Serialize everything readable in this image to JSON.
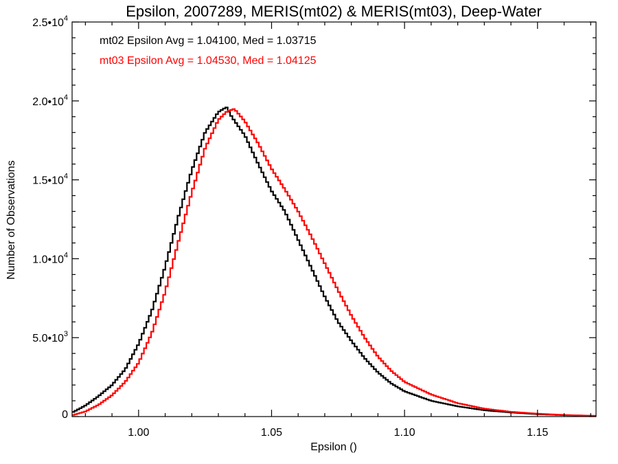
{
  "chart_data": {
    "type": "line",
    "title": "Epsilon, 2007289, MERIS(mt02) & MERIS(mt03), Deep-Water",
    "xlabel": "Epsilon ()",
    "ylabel": "Number of Observations",
    "xlim": [
      0.975,
      1.172
    ],
    "ylim": [
      0,
      25000
    ],
    "step": true,
    "x_ticks": [
      {
        "value": 1.0,
        "label": "1.00"
      },
      {
        "value": 1.05,
        "label": "1.05"
      },
      {
        "value": 1.1,
        "label": "1.10"
      },
      {
        "value": 1.15,
        "label": "1.15"
      }
    ],
    "y_ticks": [
      {
        "value": 0,
        "mantissa": "0",
        "exp": ""
      },
      {
        "value": 5000,
        "mantissa": "5.0•10",
        "exp": "3"
      },
      {
        "value": 10000,
        "mantissa": "1.0•10",
        "exp": "4"
      },
      {
        "value": 15000,
        "mantissa": "1.5•10",
        "exp": "4"
      },
      {
        "value": 20000,
        "mantissa": "2.0•10",
        "exp": "4"
      },
      {
        "value": 25000,
        "mantissa": "2.5•10",
        "exp": "4"
      }
    ],
    "annotations": [
      {
        "text": "mt02 Epsilon Avg = 1.04100, Med = 1.03715",
        "color": "#000000"
      },
      {
        "text": "mt03 Epsilon Avg = 1.04530, Med = 1.04125",
        "color": "#ff0000"
      }
    ],
    "series": [
      {
        "color": "#000000",
        "x": [
          0.975,
          0.98,
          0.985,
          0.99,
          0.995,
          1.0,
          1.005,
          1.01,
          1.015,
          1.02,
          1.025,
          1.03,
          1.033,
          1.035,
          1.04,
          1.045,
          1.05,
          1.055,
          1.06,
          1.065,
          1.07,
          1.075,
          1.08,
          1.085,
          1.09,
          1.095,
          1.1,
          1.11,
          1.12,
          1.13,
          1.14,
          1.15,
          1.16,
          1.172
        ],
        "y": [
          250,
          700,
          1300,
          2000,
          3000,
          4600,
          6700,
          9500,
          12700,
          15600,
          18000,
          19300,
          19600,
          19000,
          17800,
          16000,
          14300,
          13000,
          11200,
          9400,
          7600,
          6000,
          4800,
          3700,
          2800,
          2100,
          1600,
          1000,
          650,
          400,
          260,
          150,
          90,
          40
        ]
      },
      {
        "color": "#ff0000",
        "x": [
          0.975,
          0.98,
          0.985,
          0.99,
          0.995,
          1.0,
          1.005,
          1.01,
          1.015,
          1.02,
          1.025,
          1.03,
          1.033,
          1.036,
          1.04,
          1.045,
          1.05,
          1.055,
          1.06,
          1.065,
          1.07,
          1.075,
          1.08,
          1.085,
          1.09,
          1.095,
          1.1,
          1.11,
          1.12,
          1.13,
          1.14,
          1.15,
          1.16,
          1.172
        ],
        "y": [
          80,
          320,
          750,
          1350,
          2200,
          3400,
          5300,
          7900,
          11100,
          14200,
          17000,
          18800,
          19300,
          19500,
          18700,
          17300,
          15700,
          14400,
          13000,
          11400,
          9700,
          8000,
          6400,
          5000,
          3800,
          2900,
          2200,
          1400,
          850,
          500,
          300,
          180,
          100,
          40
        ]
      }
    ]
  }
}
